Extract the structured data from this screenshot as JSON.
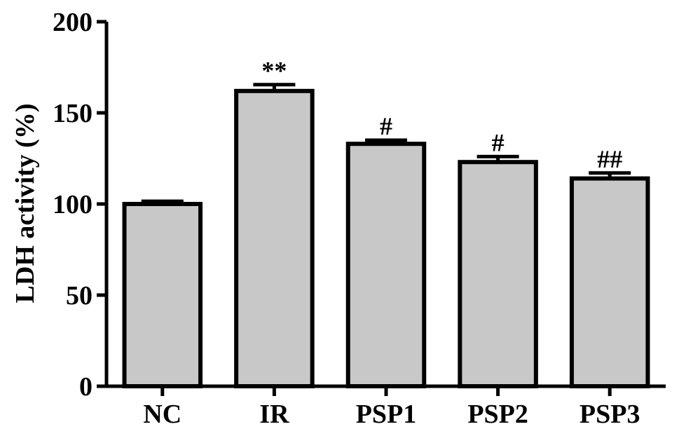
{
  "chart_data": {
    "type": "bar",
    "title": "",
    "xlabel": "",
    "ylabel": "LDH activity (%)",
    "ylim": [
      0,
      200
    ],
    "yticks": [
      "0",
      "50",
      "100",
      "150",
      "200"
    ],
    "categories": [
      "NC",
      "IR",
      "PSP1",
      "PSP2",
      "PSP3"
    ],
    "values": [
      100,
      162,
      133,
      123,
      114
    ],
    "errors": [
      1.5,
      3.5,
      2,
      3,
      3
    ],
    "annotations": [
      "",
      "**",
      "#",
      "#",
      "##"
    ],
    "grid": false,
    "bar_color": "#c8c8c8",
    "edge_color": "#000000"
  }
}
